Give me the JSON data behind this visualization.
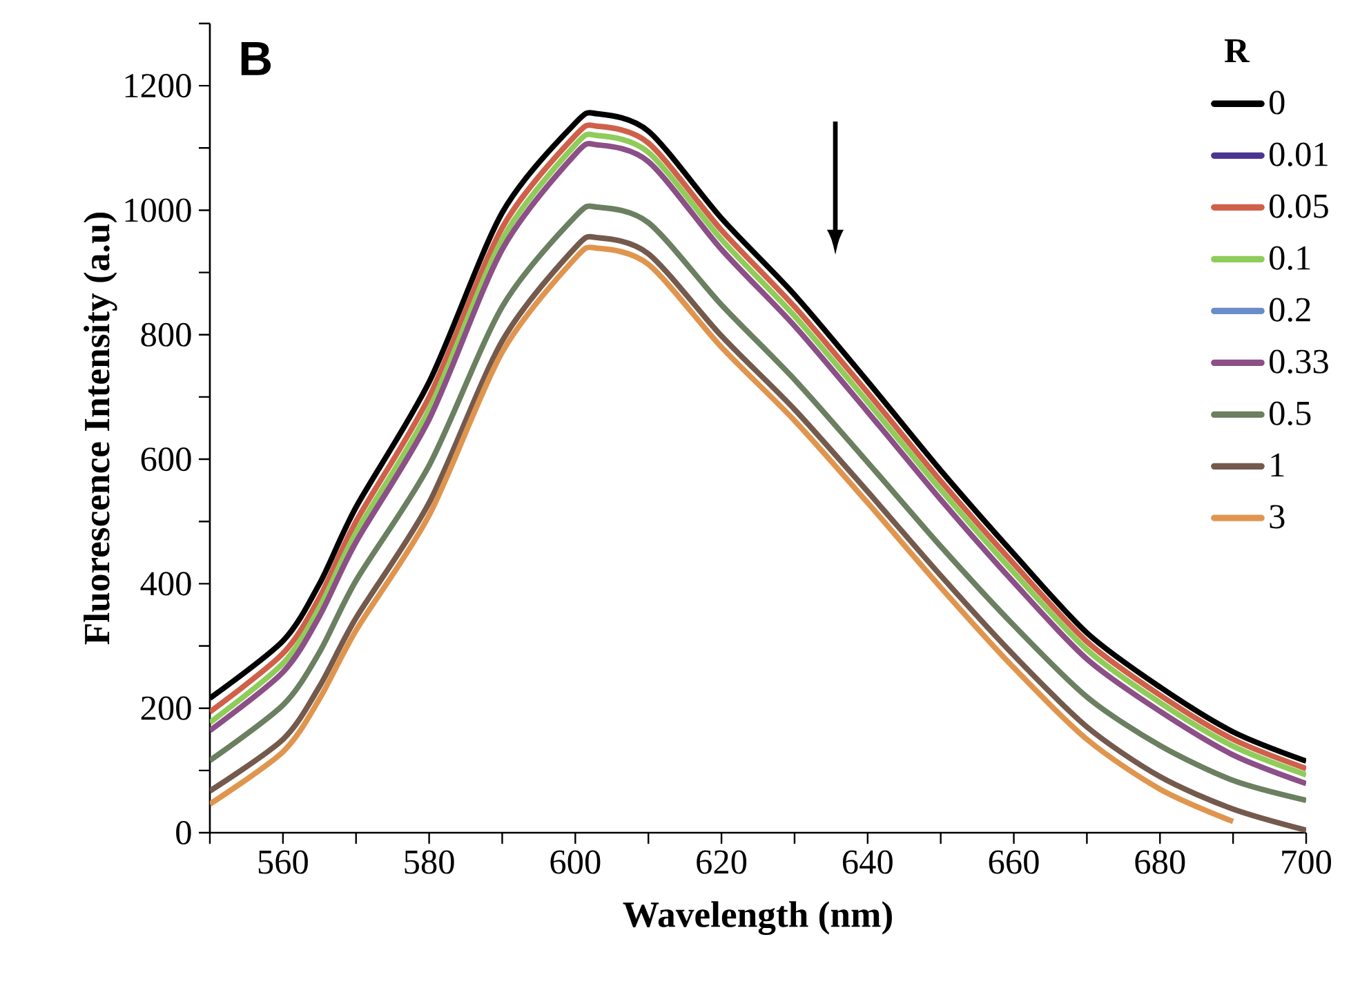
{
  "chart_data": {
    "type": "line",
    "xlabel": "Wavelength (nm)",
    "ylabel": "Fluorescence Intensity (a.u)",
    "legend_title": "R",
    "legend": "top right",
    "annotations": [
      "B"
    ],
    "x": [
      550,
      560,
      565,
      570,
      580,
      590,
      600,
      603,
      610,
      620,
      630,
      640,
      650,
      660,
      670,
      680,
      690,
      700
    ],
    "xlim": [
      550,
      700
    ],
    "xticks": [
      {
        "value": 550,
        "label": null
      },
      560,
      {
        "value": 570,
        "label": null
      },
      580,
      {
        "value": 590,
        "label": null
      },
      600,
      {
        "value": 610,
        "label": null
      },
      620,
      {
        "value": 630,
        "label": null
      },
      640,
      {
        "value": 650,
        "label": null
      },
      660,
      {
        "value": 670,
        "label": null
      },
      680,
      {
        "value": 690,
        "label": null
      },
      700
    ],
    "ylim": [
      0,
      1300
    ],
    "yticks": [
      0,
      {
        "value": 100,
        "label": null
      },
      200,
      {
        "value": 300,
        "label": null
      },
      400,
      {
        "value": 500,
        "label": null
      },
      600,
      {
        "value": 700,
        "label": null
      },
      800,
      {
        "value": 900,
        "label": null
      },
      1000,
      {
        "value": 1100,
        "label": null
      },
      1200,
      {
        "value": 1300,
        "label": null
      }
    ],
    "series": [
      {
        "name": "0",
        "color": "#000000",
        "values": [
          216,
          308,
          400,
          523,
          724,
          996,
          1140,
          1155,
          1127,
          987,
          864,
          725,
          582,
          448,
          321,
          234,
          162,
          115
        ]
      },
      {
        "name": "0.01",
        "color": "#4b3591",
        "values": [
          null,
          null,
          null,
          null,
          null,
          null,
          null,
          null,
          null,
          null,
          null,
          null,
          null,
          null,
          null,
          null,
          null,
          null
        ]
      },
      {
        "name": "0.05",
        "color": "#d0604a",
        "values": [
          194,
          288,
          378,
          500,
          700,
          972,
          1120,
          1135,
          1108,
          968,
          845,
          707,
          565,
          432,
          307,
          221,
          150,
          103
        ]
      },
      {
        "name": "0.1",
        "color": "#8fcc5a",
        "values": [
          177,
          272,
          362,
          482,
          680,
          953,
          1105,
          1120,
          1093,
          953,
          830,
          692,
          551,
          418,
          294,
          209,
          139,
          93
        ]
      },
      {
        "name": "0.2",
        "color": "#6a8cc8",
        "values": [
          null,
          null,
          null,
          null,
          null,
          null,
          null,
          null,
          null,
          null,
          null,
          null,
          null,
          null,
          null,
          null,
          null,
          null
        ]
      },
      {
        "name": "0.33",
        "color": "#8c4f87",
        "values": [
          164,
          258,
          348,
          467,
          664,
          937,
          1090,
          1105,
          1078,
          937,
          814,
          676,
          535,
          402,
          279,
          195,
          125,
          79
        ]
      },
      {
        "name": "0.5",
        "color": "#6b7f61",
        "values": [
          116,
          205,
          290,
          405,
          590,
          845,
          990,
          1005,
          980,
          848,
          728,
          595,
          460,
          333,
          218,
          140,
          84,
          52
        ]
      },
      {
        "name": "1",
        "color": "#745a4d",
        "values": [
          67,
          150,
          235,
          345,
          530,
          790,
          940,
          956,
          930,
          798,
          680,
          548,
          413,
          285,
          170,
          90,
          38,
          4
        ]
      },
      {
        "name": "3",
        "color": "#e0954f",
        "values": [
          46,
          130,
          215,
          325,
          510,
          772,
          923,
          939,
          913,
          780,
          662,
          530,
          394,
          265,
          150,
          70,
          18,
          null
        ]
      }
    ]
  }
}
